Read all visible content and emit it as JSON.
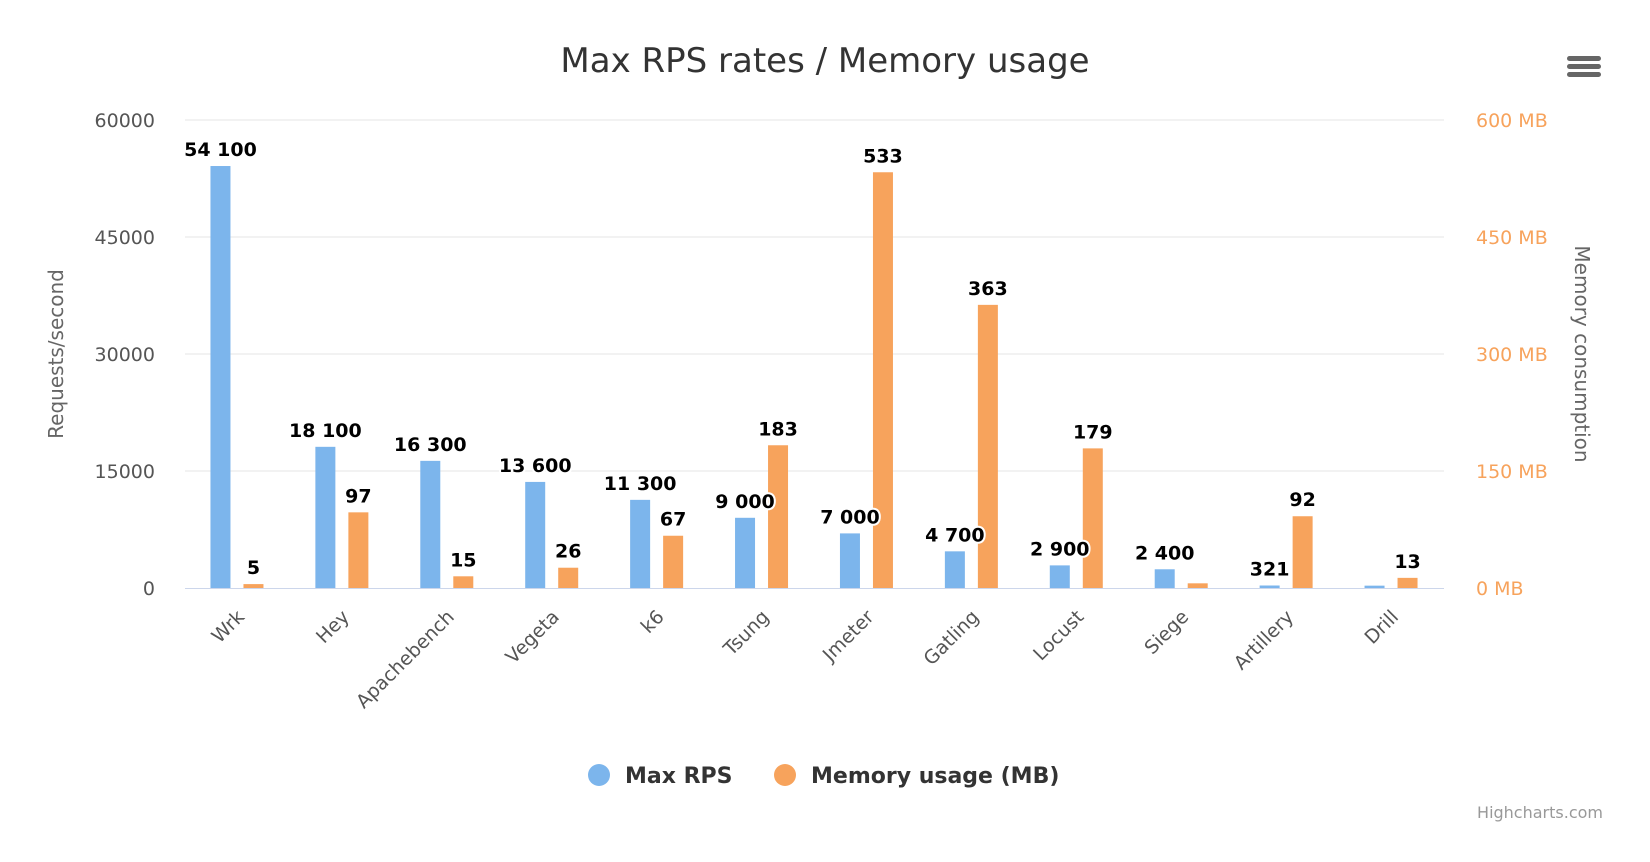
{
  "chart_data": {
    "type": "bar",
    "title": "Max RPS rates / Memory usage",
    "categories": [
      "Wrk",
      "Hey",
      "Apachebench",
      "Vegeta",
      "k6",
      "Tsung",
      "Jmeter",
      "Gatling",
      "Locust",
      "Siege",
      "Artillery",
      "Drill"
    ],
    "series": [
      {
        "name": "Max RPS",
        "axis": "left",
        "color": "#7cb5ec",
        "values": [
          54100,
          18100,
          16300,
          13600,
          11300,
          9000,
          7000,
          4700,
          2900,
          2400,
          321,
          300
        ],
        "labels": [
          "54 100",
          "18 100",
          "16 300",
          "13 600",
          "11 300",
          "9 000",
          "7 000",
          "4 700",
          "2 900",
          "2 400",
          "321",
          ""
        ]
      },
      {
        "name": "Memory usage (MB)",
        "axis": "right",
        "color": "#f7a35c",
        "values": [
          5,
          97,
          15,
          26,
          67,
          183,
          533,
          363,
          179,
          6,
          92,
          13
        ],
        "labels": [
          "5",
          "97",
          "15",
          "26",
          "67",
          "183",
          "533",
          "363",
          "179",
          "",
          "92",
          "13"
        ]
      }
    ],
    "y_left": {
      "label": "Requests/second",
      "ylim": [
        0,
        60000
      ],
      "ticks": [
        "0",
        "15000",
        "30000",
        "45000",
        "60000"
      ]
    },
    "y_right": {
      "label": "Memory consumption",
      "ylim": [
        0,
        600
      ],
      "ticks": [
        "0 MB",
        "150 MB",
        "300 MB",
        "450 MB",
        "600 MB"
      ],
      "color": "#f7a35c"
    },
    "grid": true,
    "legend": "bottom-center"
  },
  "credits": "Highcharts.com",
  "menu_icon": "hamburger-menu-icon"
}
